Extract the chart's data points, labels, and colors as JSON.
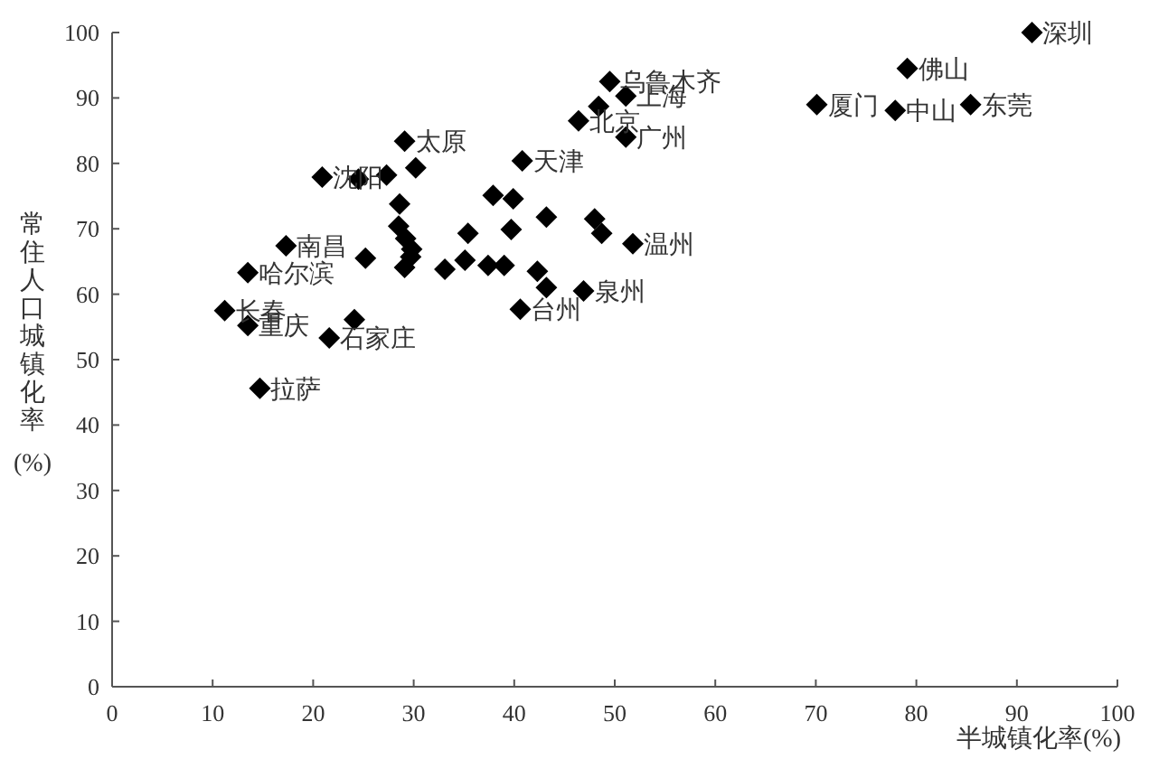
{
  "chart_data": {
    "type": "scatter",
    "xlabel": "半城镇化率(%)",
    "ylabel": "常住人口城镇化率(%)",
    "xlim": [
      0,
      100
    ],
    "ylim": [
      0,
      100
    ],
    "xticks": [
      0,
      10,
      20,
      30,
      40,
      50,
      60,
      70,
      80,
      90,
      100
    ],
    "yticks": [
      0,
      10,
      20,
      30,
      40,
      50,
      60,
      70,
      80,
      90,
      100
    ],
    "grid": false,
    "marker": "diamond",
    "series": [
      {
        "color": "#000000",
        "x": [
          91.5,
          79.1,
          70.1,
          77.9,
          85.4,
          49.5,
          51.1,
          48.4,
          46.4,
          51.1,
          40.8,
          29.1,
          30.2,
          20.9,
          24.5,
          27.3,
          28.6,
          28.5,
          29.2,
          29.8,
          29.7,
          29.1,
          17.3,
          25.2,
          13.5,
          11.2,
          13.5,
          24.1,
          21.6,
          14.7,
          37.9,
          39.9,
          43.2,
          48.0,
          48.7,
          35.4,
          39.7,
          51.8,
          33.1,
          35.1,
          37.4,
          39.0,
          42.3,
          43.2,
          46.9,
          40.6
        ],
        "values": [
          100,
          94.5,
          89.0,
          88.1,
          89.0,
          92.5,
          90.3,
          88.7,
          86.5,
          84.0,
          80.4,
          83.4,
          79.3,
          77.9,
          77.6,
          78.2,
          73.8,
          70.4,
          68.5,
          66.9,
          65.7,
          64.1,
          67.4,
          65.5,
          63.3,
          57.5,
          55.2,
          56.1,
          53.3,
          45.6,
          75.1,
          74.6,
          71.8,
          71.5,
          69.3,
          69.3,
          69.9,
          67.7,
          63.8,
          65.2,
          64.4,
          64.4,
          63.5,
          61.0,
          60.5,
          57.7
        ]
      }
    ],
    "annotations": [
      {
        "text": "深圳",
        "x": 91.5,
        "y": 100
      },
      {
        "text": "佛山",
        "x": 79.1,
        "y": 94.5
      },
      {
        "text": "厦门",
        "x": 70.1,
        "y": 89.0
      },
      {
        "text": "中山",
        "x": 77.9,
        "y": 88.1
      },
      {
        "text": "东莞",
        "x": 85.4,
        "y": 89.0
      },
      {
        "text": "乌鲁木齐",
        "x": 49.5,
        "y": 92.5
      },
      {
        "text": "上海",
        "x": 51.1,
        "y": 90.3
      },
      {
        "text": "北京",
        "x": 46.4,
        "y": 86.5
      },
      {
        "text": "广州",
        "x": 51.1,
        "y": 84.0
      },
      {
        "text": "天津",
        "x": 40.8,
        "y": 80.4
      },
      {
        "text": "太原",
        "x": 29.1,
        "y": 83.4
      },
      {
        "text": "沈阳",
        "x": 20.9,
        "y": 77.9
      },
      {
        "text": "南昌",
        "x": 17.3,
        "y": 67.4
      },
      {
        "text": "哈尔滨",
        "x": 13.5,
        "y": 63.3
      },
      {
        "text": "长春",
        "x": 11.2,
        "y": 57.5
      },
      {
        "text": "重庆",
        "x": 13.5,
        "y": 55.2
      },
      {
        "text": "石家庄",
        "x": 21.6,
        "y": 53.3
      },
      {
        "text": "拉萨",
        "x": 14.7,
        "y": 45.6
      },
      {
        "text": "温州",
        "x": 51.8,
        "y": 67.7
      },
      {
        "text": "泉州",
        "x": 46.9,
        "y": 60.5
      },
      {
        "text": "台州",
        "x": 40.6,
        "y": 57.7
      }
    ]
  }
}
